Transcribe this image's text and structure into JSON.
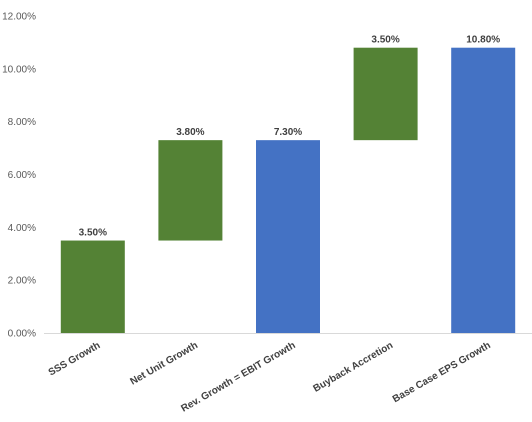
{
  "chart_data": {
    "type": "bar",
    "subtype": "waterfall",
    "title": "",
    "xlabel": "",
    "ylabel": "",
    "ylim": [
      0,
      12
    ],
    "y_tick_labels": [
      "0.00%",
      "2.00%",
      "4.00%",
      "6.00%",
      "8.00%",
      "10.00%",
      "12.00%"
    ],
    "y_ticks": [
      0,
      2,
      4,
      6,
      8,
      10,
      12
    ],
    "grid": false,
    "legend": "none",
    "categories": [
      "SSS Growth",
      "Net Unit Growth",
      "Rev. Growth = EBIT Growth",
      "Buyback Accretion",
      "Base Case EPS Growth"
    ],
    "bars": [
      {
        "base": 0,
        "value": 3.5,
        "kind": "increment",
        "label": "3.50%"
      },
      {
        "base": 3.5,
        "value": 3.8,
        "kind": "increment",
        "label": "3.80%"
      },
      {
        "base": 0,
        "value": 7.3,
        "kind": "total",
        "label": "7.30%"
      },
      {
        "base": 7.3,
        "value": 3.5,
        "kind": "increment",
        "label": "3.50%"
      },
      {
        "base": 0,
        "value": 10.8,
        "kind": "total",
        "label": "10.80%"
      }
    ],
    "colors": {
      "increment": "#548235",
      "total": "#4472C4",
      "axis": "#D9D9D9"
    }
  }
}
